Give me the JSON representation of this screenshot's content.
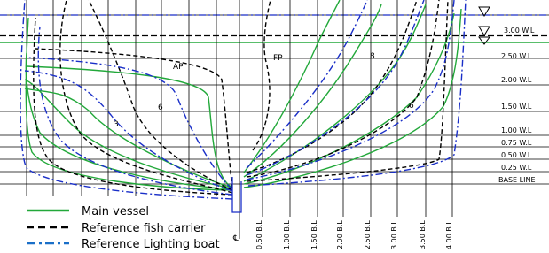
{
  "waterlines": [
    "3.00 W.L",
    "2.50 W.L",
    "2.00 W.L",
    "1.50 W.L",
    "1.00 W.L",
    "0.75 W.L",
    "0.50 W.L",
    "0.25 W.L",
    "BASE LINE"
  ],
  "buttock_lines": [
    "0.50 B.L",
    "1.00 B.L",
    "1.50 B.L",
    "2.00 B.L",
    "2.50 B.L",
    "3.00 B.L",
    "3.50 B.L",
    "4.00 B.L"
  ],
  "stations": [
    "AP",
    "3",
    "6",
    "FP",
    "8",
    "6"
  ],
  "centerline_symbol": "℄",
  "legend": [
    "Main vessel",
    "Reference fish carrier",
    "Reference Lighting boat"
  ]
}
